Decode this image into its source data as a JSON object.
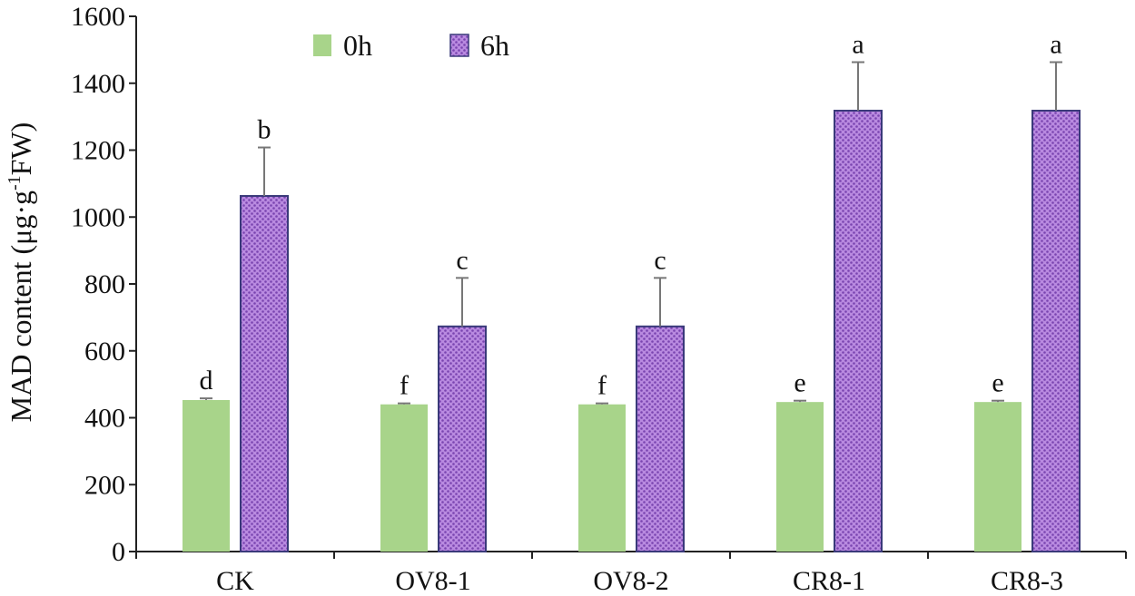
{
  "chart_data": {
    "type": "bar",
    "title": "",
    "xlabel": "",
    "ylabel": "MAD content (μg·g",
    "ylabel_sup": "-1",
    "ylabel_suffix": "FW)",
    "ylim": [
      0,
      1600
    ],
    "yticks": [
      0,
      200,
      400,
      600,
      800,
      1000,
      1200,
      1400,
      1600
    ],
    "categories": [
      "CK",
      "OV8-1",
      "OV8-2",
      "CR8-1",
      "CR8-3"
    ],
    "series": [
      {
        "name": "0h",
        "color": "#a8d48a",
        "pattern": "solid",
        "values": [
          453,
          440,
          440,
          447,
          447
        ],
        "errors": [
          5,
          3,
          3,
          4,
          4
        ],
        "significance": [
          "d",
          "f",
          "f",
          "e",
          "e"
        ]
      },
      {
        "name": "6h",
        "color": "#9966cc",
        "pattern": "dotted",
        "values": [
          1063,
          673,
          673,
          1318,
          1318
        ],
        "errors": [
          145,
          145,
          145,
          145,
          145
        ],
        "significance": [
          "b",
          "c",
          "c",
          "a",
          "a"
        ]
      }
    ],
    "legend_position": "top-left"
  }
}
